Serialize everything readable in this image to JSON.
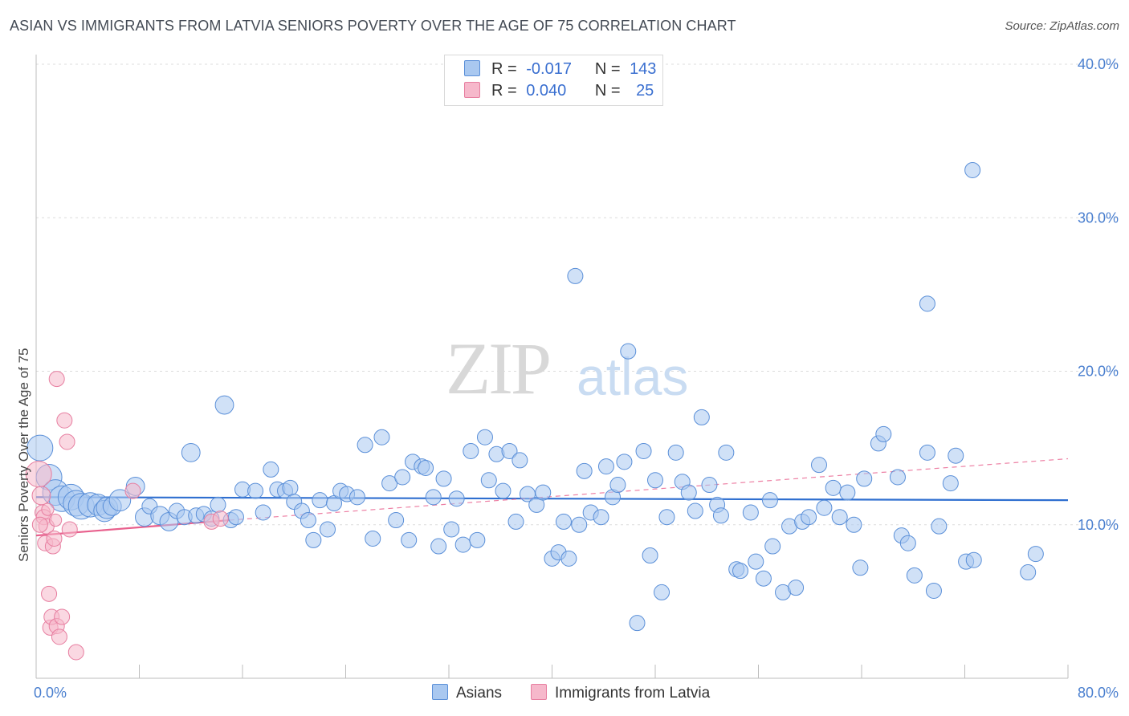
{
  "title": "ASIAN VS IMMIGRANTS FROM LATVIA SENIORS POVERTY OVER THE AGE OF 75 CORRELATION CHART",
  "source": "Source: ZipAtlas.com",
  "watermark": {
    "zip": "ZIP",
    "atlas": "atlas"
  },
  "legend": {
    "rows": [
      {
        "r_label": "R =",
        "r_value": "-0.017",
        "n_label": "N =",
        "n_value": "143",
        "color": "#a9c8f0"
      },
      {
        "r_label": "R =",
        "r_value": "0.040",
        "n_label": "N =",
        "n_value": "25",
        "color": "#f6b8cb"
      }
    ]
  },
  "bottom_legend": [
    {
      "label": "Asians",
      "color": "#a9c8f0"
    },
    {
      "label": "Immigrants from Latvia",
      "color": "#f6b8cb"
    }
  ],
  "chart_data": {
    "type": "scatter",
    "title": "ASIAN VS IMMIGRANTS FROM LATVIA SENIORS POVERTY OVER THE AGE OF 75 CORRELATION CHART",
    "xlabel": "",
    "ylabel": "Seniors Poverty Over the Age of 75",
    "xlim": [
      0,
      80
    ],
    "ylim": [
      0,
      40
    ],
    "x_tick_labels": [
      "0.0%",
      "80.0%"
    ],
    "y_ticks": [
      10,
      20,
      30,
      40
    ],
    "y_tick_labels": [
      "10.0%",
      "20.0%",
      "30.0%",
      "40.0%"
    ],
    "grid": true,
    "colors": {
      "asians_fill": "#a9c8f0",
      "asians_stroke": "#5a8fd8",
      "asians_line": "#2f6fd0",
      "latvia_fill": "#f6b8cb",
      "latvia_stroke": "#e77ea0",
      "latvia_line": "#e8608d"
    },
    "series": [
      {
        "name": "Asians",
        "trend": {
          "x0": 0,
          "y0": 11.8,
          "x1": 80,
          "y1": 11.6
        },
        "points": [
          [
            0.3,
            15.0,
            1.6
          ],
          [
            1.0,
            13.1,
            1.4
          ],
          [
            1.5,
            12.1,
            1.2
          ],
          [
            2.0,
            11.7,
            1.1
          ],
          [
            2.7,
            11.8,
            1.0
          ],
          [
            3.1,
            11.4,
            0.9
          ],
          [
            3.5,
            11.2,
            0.9
          ],
          [
            4.2,
            11.3,
            0.8
          ],
          [
            4.8,
            11.3,
            0.7
          ],
          [
            5.3,
            10.9,
            0.7
          ],
          [
            5.5,
            11.1,
            0.7
          ],
          [
            5.9,
            11.2,
            0.6
          ],
          [
            6.5,
            11.6,
            0.7
          ],
          [
            7.7,
            12.5,
            0.6
          ],
          [
            8.4,
            10.5,
            0.6
          ],
          [
            8.8,
            11.2,
            0.5
          ],
          [
            9.6,
            10.6,
            0.6
          ],
          [
            10.3,
            10.2,
            0.6
          ],
          [
            10.9,
            10.9,
            0.5
          ],
          [
            11.5,
            10.5,
            0.5
          ],
          [
            12.0,
            14.7,
            0.6
          ],
          [
            12.4,
            10.6,
            0.5
          ],
          [
            13.0,
            10.7,
            0.5
          ],
          [
            13.6,
            10.4,
            0.5
          ],
          [
            14.1,
            11.3,
            0.5
          ],
          [
            14.6,
            17.8,
            0.6
          ],
          [
            15.1,
            10.3,
            0.5
          ],
          [
            15.5,
            10.5,
            0.5
          ],
          [
            16.0,
            12.3,
            0.5
          ],
          [
            17.0,
            12.2,
            0.5
          ],
          [
            17.6,
            10.8,
            0.5
          ],
          [
            18.2,
            13.6,
            0.5
          ],
          [
            18.7,
            12.3,
            0.5
          ],
          [
            19.3,
            12.2,
            0.5
          ],
          [
            19.7,
            12.4,
            0.5
          ],
          [
            20.0,
            11.5,
            0.5
          ],
          [
            20.6,
            10.9,
            0.5
          ],
          [
            21.1,
            10.3,
            0.5
          ],
          [
            21.5,
            9.0,
            0.5
          ],
          [
            22.0,
            11.6,
            0.5
          ],
          [
            22.6,
            9.7,
            0.5
          ],
          [
            23.1,
            11.4,
            0.5
          ],
          [
            23.6,
            12.2,
            0.5
          ],
          [
            24.1,
            12.0,
            0.5
          ],
          [
            24.9,
            11.8,
            0.5
          ],
          [
            25.5,
            15.2,
            0.5
          ],
          [
            26.1,
            9.1,
            0.5
          ],
          [
            26.8,
            15.7,
            0.5
          ],
          [
            27.4,
            12.7,
            0.5
          ],
          [
            27.9,
            10.3,
            0.5
          ],
          [
            28.4,
            13.1,
            0.5
          ],
          [
            28.9,
            9.0,
            0.5
          ],
          [
            29.2,
            14.1,
            0.5
          ],
          [
            29.9,
            13.8,
            0.5
          ],
          [
            30.2,
            13.7,
            0.5
          ],
          [
            30.8,
            11.8,
            0.5
          ],
          [
            31.2,
            8.6,
            0.5
          ],
          [
            31.6,
            13.0,
            0.5
          ],
          [
            32.2,
            9.7,
            0.5
          ],
          [
            32.6,
            11.7,
            0.5
          ],
          [
            33.1,
            8.7,
            0.5
          ],
          [
            33.7,
            14.8,
            0.5
          ],
          [
            34.2,
            9.0,
            0.5
          ],
          [
            34.8,
            15.7,
            0.5
          ],
          [
            35.1,
            12.9,
            0.5
          ],
          [
            35.7,
            14.6,
            0.5
          ],
          [
            36.2,
            12.2,
            0.5
          ],
          [
            36.7,
            14.8,
            0.5
          ],
          [
            37.2,
            10.2,
            0.5
          ],
          [
            37.5,
            14.2,
            0.5
          ],
          [
            38.1,
            12.0,
            0.5
          ],
          [
            38.8,
            11.3,
            0.5
          ],
          [
            39.3,
            12.1,
            0.5
          ],
          [
            40.0,
            7.8,
            0.5
          ],
          [
            40.5,
            8.2,
            0.5
          ],
          [
            40.9,
            10.2,
            0.5
          ],
          [
            41.3,
            7.8,
            0.5
          ],
          [
            41.8,
            26.2,
            0.5
          ],
          [
            42.1,
            10.0,
            0.5
          ],
          [
            42.5,
            13.5,
            0.5
          ],
          [
            43.0,
            10.8,
            0.5
          ],
          [
            43.8,
            10.5,
            0.5
          ],
          [
            44.2,
            13.8,
            0.5
          ],
          [
            44.7,
            11.8,
            0.5
          ],
          [
            45.1,
            12.6,
            0.5
          ],
          [
            45.6,
            14.1,
            0.5
          ],
          [
            45.9,
            21.3,
            0.5
          ],
          [
            46.6,
            3.6,
            0.5
          ],
          [
            47.1,
            14.8,
            0.5
          ],
          [
            47.6,
            8.0,
            0.5
          ],
          [
            48.0,
            12.9,
            0.5
          ],
          [
            48.5,
            5.6,
            0.5
          ],
          [
            48.9,
            10.5,
            0.5
          ],
          [
            49.6,
            14.7,
            0.5
          ],
          [
            50.1,
            12.8,
            0.5
          ],
          [
            50.6,
            12.1,
            0.5
          ],
          [
            51.1,
            10.9,
            0.5
          ],
          [
            51.6,
            17.0,
            0.5
          ],
          [
            52.2,
            12.6,
            0.5
          ],
          [
            52.8,
            11.3,
            0.5
          ],
          [
            53.1,
            10.6,
            0.5
          ],
          [
            53.5,
            14.7,
            0.5
          ],
          [
            54.3,
            7.1,
            0.5
          ],
          [
            54.6,
            7.0,
            0.5
          ],
          [
            55.4,
            10.8,
            0.5
          ],
          [
            55.8,
            7.6,
            0.5
          ],
          [
            56.4,
            6.5,
            0.5
          ],
          [
            56.9,
            11.6,
            0.5
          ],
          [
            57.1,
            8.6,
            0.5
          ],
          [
            57.9,
            5.6,
            0.5
          ],
          [
            58.4,
            9.9,
            0.5
          ],
          [
            58.9,
            5.9,
            0.5
          ],
          [
            59.4,
            10.2,
            0.5
          ],
          [
            59.9,
            10.5,
            0.5
          ],
          [
            60.7,
            13.9,
            0.5
          ],
          [
            61.1,
            11.1,
            0.5
          ],
          [
            61.8,
            12.4,
            0.5
          ],
          [
            62.3,
            10.5,
            0.5
          ],
          [
            62.9,
            12.1,
            0.5
          ],
          [
            63.4,
            10.0,
            0.5
          ],
          [
            63.9,
            7.2,
            0.5
          ],
          [
            64.2,
            13.0,
            0.5
          ],
          [
            65.3,
            15.3,
            0.5
          ],
          [
            65.7,
            15.9,
            0.5
          ],
          [
            66.8,
            13.1,
            0.5
          ],
          [
            67.1,
            9.3,
            0.5
          ],
          [
            67.6,
            8.8,
            0.5
          ],
          [
            68.1,
            6.7,
            0.5
          ],
          [
            69.1,
            14.7,
            0.5
          ],
          [
            69.6,
            5.7,
            0.5
          ],
          [
            70.0,
            9.9,
            0.5
          ],
          [
            70.9,
            12.7,
            0.5
          ],
          [
            71.3,
            14.5,
            0.5
          ],
          [
            72.1,
            7.6,
            0.5
          ],
          [
            72.7,
            7.7,
            0.5
          ],
          [
            72.6,
            33.1,
            0.5
          ],
          [
            69.1,
            24.4,
            0.5
          ],
          [
            76.9,
            6.9,
            0.5
          ],
          [
            77.5,
            8.1,
            0.5
          ]
        ]
      },
      {
        "name": "Immigrants from Latvia",
        "trend": {
          "x0": 0,
          "y0": 9.3,
          "x1": 15,
          "y1": 10.3
        },
        "trend_dashed": {
          "x0": 15,
          "y0": 10.3,
          "x1": 80,
          "y1": 14.3
        },
        "points": [
          [
            0.2,
            13.3,
            1.1
          ],
          [
            0.4,
            11.9,
            0.6
          ],
          [
            0.5,
            10.8,
            0.5
          ],
          [
            0.6,
            10.5,
            0.5
          ],
          [
            0.7,
            8.8,
            0.5
          ],
          [
            0.8,
            9.9,
            0.5
          ],
          [
            0.9,
            11.0,
            0.4
          ],
          [
            1.0,
            5.5,
            0.5
          ],
          [
            1.1,
            3.3,
            0.5
          ],
          [
            1.2,
            4.0,
            0.5
          ],
          [
            1.3,
            8.6,
            0.5
          ],
          [
            1.4,
            9.1,
            0.5
          ],
          [
            1.5,
            10.3,
            0.4
          ],
          [
            1.6,
            3.4,
            0.5
          ],
          [
            1.6,
            19.5,
            0.5
          ],
          [
            1.8,
            2.7,
            0.5
          ],
          [
            2.0,
            4.0,
            0.5
          ],
          [
            2.2,
            16.8,
            0.5
          ],
          [
            2.4,
            15.4,
            0.5
          ],
          [
            2.6,
            9.7,
            0.5
          ],
          [
            3.1,
            1.7,
            0.5
          ],
          [
            7.5,
            12.2,
            0.5
          ],
          [
            13.6,
            10.2,
            0.5
          ],
          [
            14.3,
            10.4,
            0.5
          ],
          [
            0.3,
            10.0,
            0.5
          ]
        ]
      }
    ]
  }
}
